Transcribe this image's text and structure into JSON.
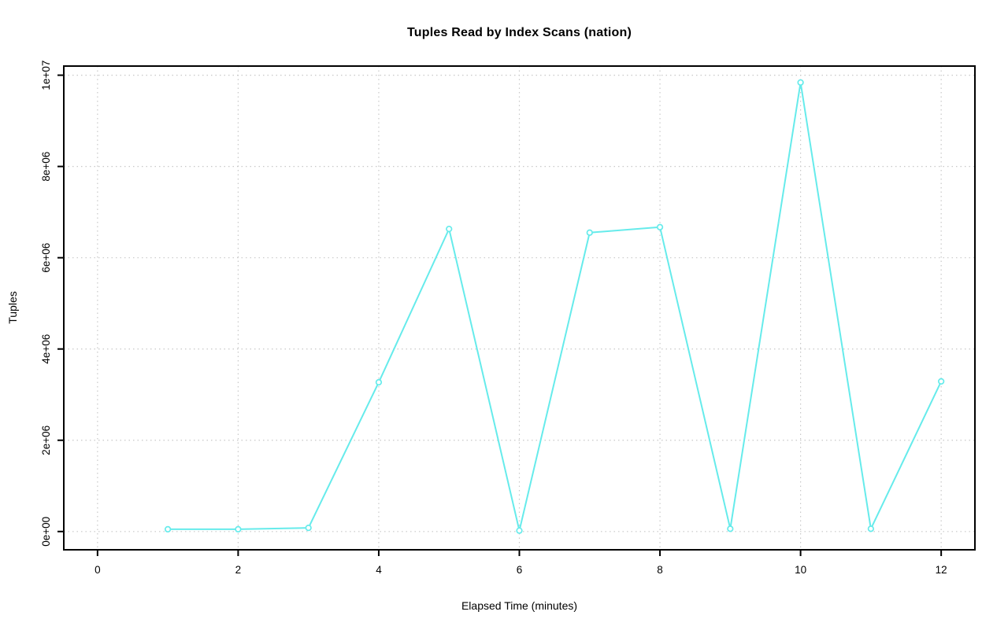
{
  "chart_data": {
    "type": "line",
    "title": "Tuples Read by Index Scans (nation)",
    "xlabel": "Elapsed Time (minutes)",
    "ylabel": "Tuples",
    "x": [
      1,
      2,
      3,
      4,
      5,
      6,
      7,
      8,
      9,
      10,
      11,
      12
    ],
    "y": [
      50000,
      50000,
      80000,
      3270000,
      6630000,
      20000,
      6550000,
      6670000,
      60000,
      9840000,
      60000,
      3290000
    ],
    "xticks": {
      "values": [
        0,
        2,
        4,
        6,
        8,
        10,
        12
      ],
      "labels": [
        "0",
        "2",
        "4",
        "6",
        "8",
        "10",
        "12"
      ]
    },
    "yticks": {
      "values": [
        0,
        2000000,
        4000000,
        6000000,
        8000000,
        10000000
      ],
      "labels": [
        "0e+00",
        "2e+06",
        "4e+06",
        "6e+06",
        "8e+06",
        "1e+07"
      ]
    },
    "xlim": [
      -0.48,
      12.48
    ],
    "ylim": [
      -400000,
      10200000
    ],
    "grid": "dotted, both axes, at every tick",
    "legend": "none",
    "marker": "open-circle",
    "colors": {
      "series": "#66ebeb",
      "gridline": "#c8c8c8",
      "axis": "#000000",
      "background": "#ffffff"
    }
  }
}
